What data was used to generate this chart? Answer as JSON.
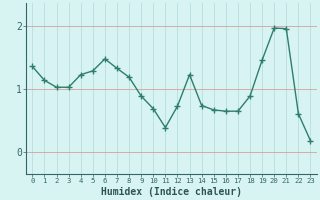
{
  "x": [
    0,
    1,
    2,
    3,
    4,
    5,
    6,
    7,
    8,
    9,
    10,
    11,
    12,
    13,
    14,
    15,
    16,
    17,
    18,
    19,
    20,
    21,
    22,
    23
  ],
  "y": [
    1.35,
    1.13,
    1.02,
    1.02,
    1.22,
    1.28,
    1.47,
    1.32,
    1.18,
    0.88,
    0.68,
    0.38,
    0.72,
    1.22,
    0.73,
    0.66,
    0.64,
    0.64,
    0.88,
    1.45,
    1.96,
    1.95,
    0.6,
    0.17
  ],
  "xlabel": "Humidex (Indice chaleur)",
  "xlim": [
    -0.5,
    23.5
  ],
  "ylim": [
    -0.35,
    2.35
  ],
  "yticks": [
    0,
    1,
    2
  ],
  "line_color": "#2e7d6e",
  "marker_color": "#2e7d6e",
  "bg_color": "#d8f4f2",
  "hgrid_color": "#d4a0a0",
  "vgrid_color": "#b8dede"
}
